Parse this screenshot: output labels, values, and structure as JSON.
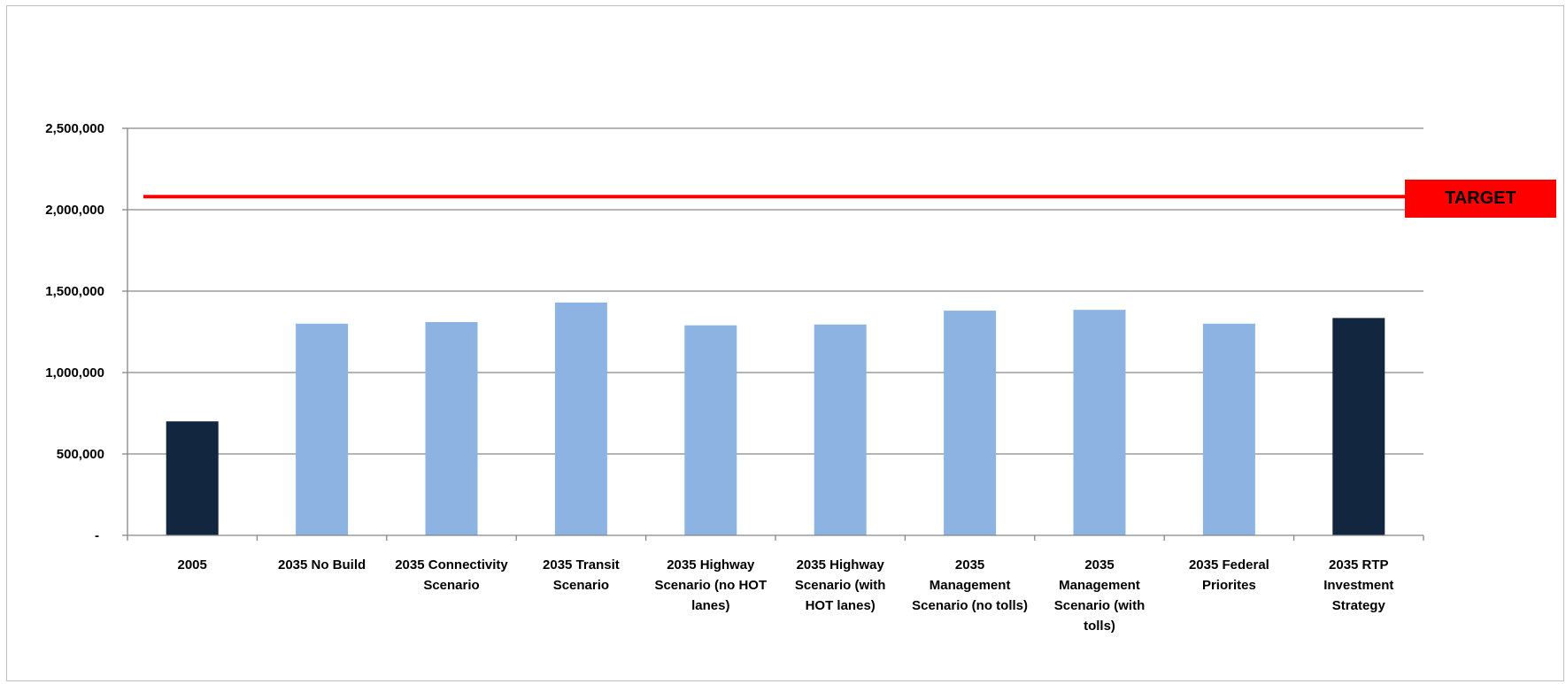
{
  "chart_data": {
    "type": "bar",
    "categories": [
      [
        "2005"
      ],
      [
        "2035 No Build"
      ],
      [
        "2035 Connectivity",
        "Scenario"
      ],
      [
        "2035 Transit",
        "Scenario"
      ],
      [
        "2035 Highway",
        "Scenario (no HOT",
        "lanes)"
      ],
      [
        "2035 Highway",
        "Scenario (with",
        "HOT lanes)"
      ],
      [
        "2035",
        "Management",
        "Scenario (no tolls)"
      ],
      [
        "2035",
        "Management",
        "Scenario (with",
        "tolls)"
      ],
      [
        "2035 Federal",
        "Priorites"
      ],
      [
        "2035 RTP",
        "Investment",
        "Strategy"
      ]
    ],
    "values": [
      700000,
      1300000,
      1310000,
      1430000,
      1290000,
      1295000,
      1380000,
      1385000,
      1300000,
      1335000
    ],
    "bar_colors": [
      "#13263f",
      "#8db3e2",
      "#8db3e2",
      "#8db3e2",
      "#8db3e2",
      "#8db3e2",
      "#8db3e2",
      "#8db3e2",
      "#8db3e2",
      "#13263f"
    ],
    "ylim": [
      0,
      2500000
    ],
    "yticks": [
      0,
      500000,
      1000000,
      1500000,
      2000000,
      2500000
    ],
    "ytick_labels": [
      "-",
      "500,000",
      "1,000,000",
      "1,500,000",
      "2,000,000",
      "2,500,000"
    ],
    "grid": true,
    "target": {
      "value": 2080000,
      "label": "TARGET",
      "color": "#ff0000"
    },
    "title": "",
    "xlabel": "",
    "ylabel": ""
  }
}
